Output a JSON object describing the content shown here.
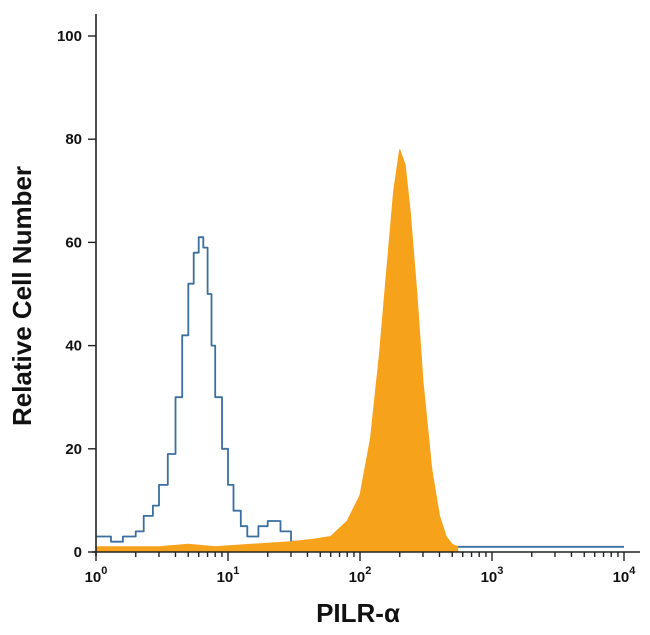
{
  "chart_data": {
    "type": "histogram",
    "title": "",
    "xlabel": "PILR-α",
    "ylabel": "Relative Cell Number",
    "x_scale": "log",
    "xlim": [
      1,
      10000
    ],
    "ylim": [
      0,
      100
    ],
    "grid": false,
    "legend": "none",
    "x_ticks": [
      {
        "base": "10",
        "exp": "0",
        "value": 1
      },
      {
        "base": "10",
        "exp": "1",
        "value": 10
      },
      {
        "base": "10",
        "exp": "2",
        "value": 100
      },
      {
        "base": "10",
        "exp": "3",
        "value": 1000
      },
      {
        "base": "10",
        "exp": "4",
        "value": 10000
      }
    ],
    "y_ticks": [
      "0",
      "20",
      "40",
      "60",
      "80",
      "100"
    ],
    "series": [
      {
        "style": "outline",
        "color": "#3a6fa0",
        "points": [
          [
            1.0,
            3
          ],
          [
            1.3,
            2
          ],
          [
            1.6,
            3
          ],
          [
            2.0,
            4
          ],
          [
            2.3,
            7
          ],
          [
            2.7,
            9
          ],
          [
            3.0,
            13
          ],
          [
            3.5,
            19
          ],
          [
            4.0,
            30
          ],
          [
            4.5,
            42
          ],
          [
            5.0,
            52
          ],
          [
            5.5,
            58
          ],
          [
            6.0,
            61
          ],
          [
            6.5,
            59
          ],
          [
            7.0,
            50
          ],
          [
            7.5,
            40
          ],
          [
            8.0,
            30
          ],
          [
            9.0,
            20
          ],
          [
            10.0,
            13
          ],
          [
            11.0,
            8
          ],
          [
            12.5,
            5
          ],
          [
            14.0,
            3
          ],
          [
            17.0,
            5
          ],
          [
            20.0,
            6
          ],
          [
            25.0,
            4
          ],
          [
            30.0,
            2
          ],
          [
            40.0,
            1
          ],
          [
            60.0,
            1
          ],
          [
            100.0,
            1
          ],
          [
            1000.0,
            1
          ],
          [
            10000.0,
            1
          ]
        ]
      },
      {
        "style": "filled",
        "color": "#f7a21b",
        "points": [
          [
            1.0,
            1
          ],
          [
            3.0,
            1
          ],
          [
            5.0,
            1.5
          ],
          [
            8.0,
            1
          ],
          [
            15.0,
            1.5
          ],
          [
            30.0,
            2
          ],
          [
            45.0,
            2.5
          ],
          [
            60.0,
            3
          ],
          [
            80.0,
            6
          ],
          [
            100.0,
            11
          ],
          [
            120.0,
            22
          ],
          [
            140.0,
            38
          ],
          [
            160.0,
            55
          ],
          [
            180.0,
            70
          ],
          [
            200.0,
            78
          ],
          [
            220.0,
            75
          ],
          [
            240.0,
            66
          ],
          [
            270.0,
            50
          ],
          [
            300.0,
            33
          ],
          [
            350.0,
            16
          ],
          [
            400.0,
            7
          ],
          [
            450.0,
            3
          ],
          [
            500.0,
            1.5
          ],
          [
            550.0,
            1
          ]
        ]
      }
    ]
  }
}
